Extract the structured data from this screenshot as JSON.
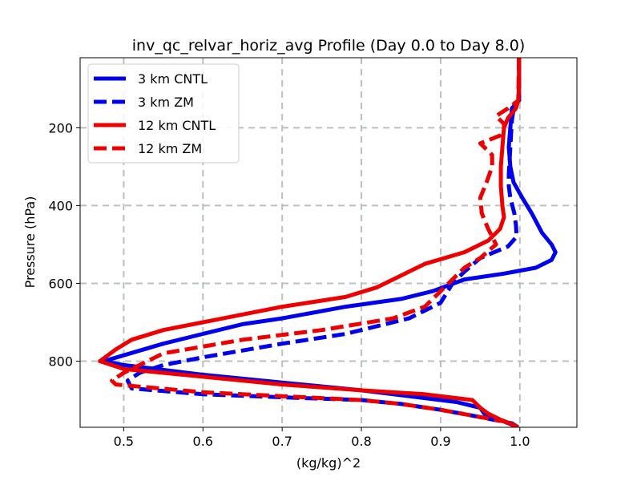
{
  "chart_data": {
    "type": "line",
    "title": "inv_qc_relvar_horiz_avg Profile (Day 0.0 to Day 8.0)",
    "xlabel": "(kg/kg)^2",
    "ylabel": "Pressure (hPa)",
    "xlim": [
      0.445,
      1.072
    ],
    "ylim": [
      970,
      20
    ],
    "y_inverted": true,
    "grid": true,
    "legend_position": "top-left",
    "x_ticks": [
      0.5,
      0.6,
      0.7,
      0.8,
      0.9,
      1.0
    ],
    "x_tick_labels": [
      "0.5",
      "0.6",
      "0.7",
      "0.8",
      "0.9",
      "1.0"
    ],
    "y_ticks": [
      200,
      400,
      600,
      800
    ],
    "y_tick_labels": [
      "200",
      "400",
      "600",
      "800"
    ],
    "series": [
      {
        "name": "3 km CNTL",
        "color": "#0000ee",
        "dash": "solid",
        "points": [
          [
            0.999,
            20
          ],
          [
            0.999,
            130
          ],
          [
            0.99,
            150
          ],
          [
            0.988,
            200
          ],
          [
            0.986,
            250
          ],
          [
            0.988,
            300
          ],
          [
            0.992,
            340
          ],
          [
            1.003,
            380
          ],
          [
            1.015,
            420
          ],
          [
            1.028,
            470
          ],
          [
            1.04,
            500
          ],
          [
            1.045,
            520
          ],
          [
            1.04,
            540
          ],
          [
            1.02,
            560
          ],
          [
            0.98,
            575
          ],
          [
            0.93,
            590
          ],
          [
            0.89,
            620
          ],
          [
            0.85,
            640
          ],
          [
            0.78,
            660
          ],
          [
            0.7,
            690
          ],
          [
            0.65,
            705
          ],
          [
            0.6,
            730
          ],
          [
            0.55,
            755
          ],
          [
            0.5,
            785
          ],
          [
            0.475,
            800
          ],
          [
            0.5,
            810
          ],
          [
            0.6,
            835
          ],
          [
            0.7,
            855
          ],
          [
            0.8,
            875
          ],
          [
            0.86,
            890
          ],
          [
            0.92,
            905
          ],
          [
            0.95,
            920
          ],
          [
            0.955,
            935
          ],
          [
            0.98,
            955
          ],
          [
            0.998,
            970
          ]
        ]
      },
      {
        "name": "3 km ZM",
        "color": "#0000ee",
        "dash": "dashed",
        "points": [
          [
            0.999,
            20
          ],
          [
            0.999,
            130
          ],
          [
            0.993,
            140
          ],
          [
            0.99,
            180
          ],
          [
            0.988,
            250
          ],
          [
            0.986,
            320
          ],
          [
            0.986,
            350
          ],
          [
            0.988,
            380
          ],
          [
            0.993,
            420
          ],
          [
            0.995,
            450
          ],
          [
            0.996,
            480
          ],
          [
            0.985,
            505
          ],
          [
            0.95,
            535
          ],
          [
            0.93,
            570
          ],
          [
            0.915,
            600
          ],
          [
            0.9,
            650
          ],
          [
            0.86,
            690
          ],
          [
            0.78,
            730
          ],
          [
            0.7,
            755
          ],
          [
            0.6,
            790
          ],
          [
            0.55,
            810
          ],
          [
            0.52,
            830
          ],
          [
            0.505,
            850
          ],
          [
            0.51,
            870
          ],
          [
            0.6,
            885
          ],
          [
            0.7,
            893
          ],
          [
            0.8,
            900
          ],
          [
            0.85,
            910
          ],
          [
            0.9,
            925
          ],
          [
            0.94,
            940
          ],
          [
            0.99,
            960
          ],
          [
            0.998,
            970
          ]
        ]
      },
      {
        "name": "12 km CNTL",
        "color": "#ee0000",
        "dash": "solid",
        "points": [
          [
            0.999,
            20
          ],
          [
            0.999,
            90
          ],
          [
            0.998,
            130
          ],
          [
            0.995,
            150
          ],
          [
            0.985,
            175
          ],
          [
            0.98,
            200
          ],
          [
            0.978,
            250
          ],
          [
            0.976,
            300
          ],
          [
            0.976,
            350
          ],
          [
            0.978,
            400
          ],
          [
            0.98,
            430
          ],
          [
            0.975,
            460
          ],
          [
            0.96,
            490
          ],
          [
            0.93,
            520
          ],
          [
            0.88,
            550
          ],
          [
            0.85,
            580
          ],
          [
            0.82,
            610
          ],
          [
            0.78,
            635
          ],
          [
            0.7,
            660
          ],
          [
            0.65,
            680
          ],
          [
            0.6,
            700
          ],
          [
            0.55,
            720
          ],
          [
            0.51,
            745
          ],
          [
            0.49,
            770
          ],
          [
            0.47,
            800
          ],
          [
            0.5,
            820
          ],
          [
            0.6,
            840
          ],
          [
            0.7,
            860
          ],
          [
            0.8,
            875
          ],
          [
            0.88,
            885
          ],
          [
            0.94,
            900
          ],
          [
            0.95,
            920
          ],
          [
            0.96,
            935
          ],
          [
            0.975,
            950
          ],
          [
            0.99,
            962
          ],
          [
            0.998,
            970
          ]
        ]
      },
      {
        "name": "12 km ZM",
        "color": "#ee0000",
        "dash": "dashed",
        "points": [
          [
            0.999,
            20
          ],
          [
            0.998,
            130
          ],
          [
            0.985,
            150
          ],
          [
            0.97,
            170
          ],
          [
            0.98,
            190
          ],
          [
            0.98,
            200
          ],
          [
            0.975,
            220
          ],
          [
            0.95,
            240
          ],
          [
            0.965,
            270
          ],
          [
            0.965,
            300
          ],
          [
            0.958,
            340
          ],
          [
            0.95,
            380
          ],
          [
            0.952,
            420
          ],
          [
            0.96,
            460
          ],
          [
            0.97,
            500
          ],
          [
            0.95,
            535
          ],
          [
            0.93,
            560
          ],
          [
            0.92,
            580
          ],
          [
            0.9,
            620
          ],
          [
            0.88,
            660
          ],
          [
            0.84,
            690
          ],
          [
            0.75,
            720
          ],
          [
            0.65,
            745
          ],
          [
            0.55,
            780
          ],
          [
            0.52,
            810
          ],
          [
            0.5,
            830
          ],
          [
            0.485,
            850
          ],
          [
            0.49,
            860
          ],
          [
            0.6,
            880
          ],
          [
            0.7,
            890
          ],
          [
            0.8,
            900
          ],
          [
            0.85,
            910
          ],
          [
            0.9,
            925
          ],
          [
            0.94,
            940
          ],
          [
            0.98,
            955
          ],
          [
            0.998,
            970
          ]
        ]
      }
    ]
  }
}
